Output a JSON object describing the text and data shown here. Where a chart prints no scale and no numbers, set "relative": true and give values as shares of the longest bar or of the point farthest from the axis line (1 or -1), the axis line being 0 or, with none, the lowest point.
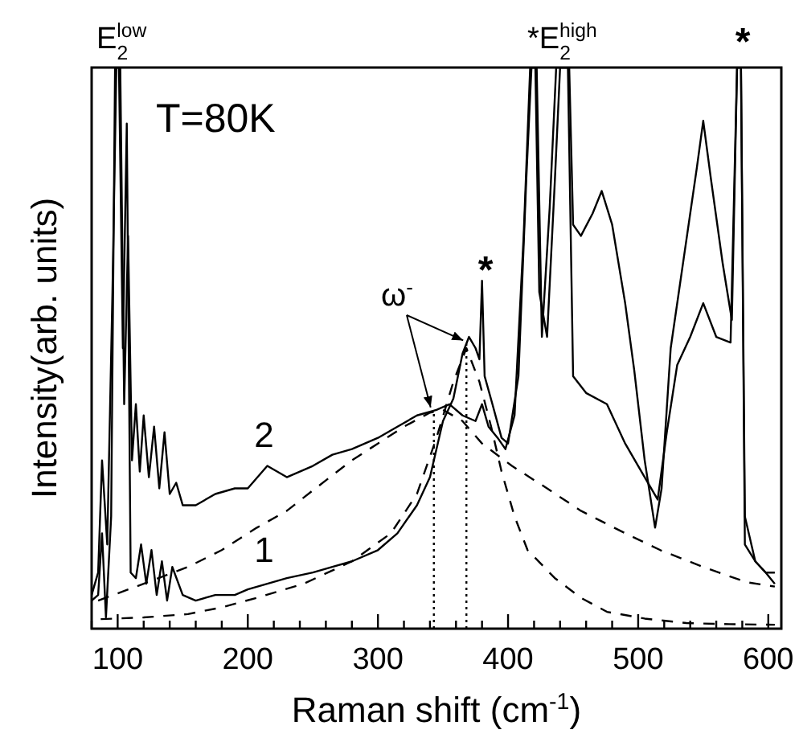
{
  "chart_data": {
    "type": "line",
    "relative": true,
    "xlabel": "Raman shift (cm$^{-1}$)",
    "ylabel": "Intensity(arb. units)",
    "xlim": [
      80,
      610
    ],
    "xticks": [
      {
        "value": 80,
        "label": null
      },
      100,
      {
        "value": 120,
        "label": null
      },
      {
        "value": 140,
        "label": null
      },
      {
        "value": 160,
        "label": null
      },
      {
        "value": 180,
        "label": null
      },
      200,
      {
        "value": 220,
        "label": null
      },
      {
        "value": 240,
        "label": null
      },
      {
        "value": 260,
        "label": null
      },
      {
        "value": 280,
        "label": null
      },
      300,
      {
        "value": 320,
        "label": null
      },
      {
        "value": 340,
        "label": null
      },
      {
        "value": 360,
        "label": null
      },
      {
        "value": 380,
        "label": null
      },
      400,
      {
        "value": 420,
        "label": null
      },
      {
        "value": 440,
        "label": null
      },
      {
        "value": 460,
        "label": null
      },
      {
        "value": 480,
        "label": null
      },
      500,
      {
        "value": 520,
        "label": null
      },
      {
        "value": 540,
        "label": null
      },
      {
        "value": 560,
        "label": null
      },
      {
        "value": 580,
        "label": null
      },
      600
    ],
    "tick_labels": "x",
    "grid": false,
    "series": [
      {
        "name": "1",
        "color": "#000000",
        "line_style": "solid",
        "x": [
          80,
          85,
          88,
          91,
          95,
          98,
          101,
          104,
          107,
          110,
          114,
          118,
          122,
          126,
          130,
          134,
          138,
          142,
          150,
          160,
          175,
          190,
          200,
          215,
          230,
          250,
          265,
          280,
          300,
          315,
          330,
          340,
          350,
          358,
          365,
          370,
          375,
          378,
          380,
          382,
          388,
          395,
          400,
          408,
          414,
          418,
          422,
          426,
          432,
          437,
          447,
          450,
          456,
          465,
          472,
          480,
          490,
          497,
          505,
          513,
          518,
          525,
          535,
          545,
          550,
          556,
          565,
          572,
          576,
          579,
          582,
          590,
          598,
          605
        ],
        "values": [
          0.05,
          0.06,
          0.17,
          0.02,
          0.2,
          1,
          1,
          0.5,
          0.9,
          0.1,
          0.09,
          0.15,
          0.08,
          0.14,
          0.06,
          0.12,
          0.05,
          0.11,
          0.06,
          0.05,
          0.06,
          0.06,
          0.07,
          0.08,
          0.09,
          0.1,
          0.11,
          0.12,
          0.14,
          0.17,
          0.22,
          0.27,
          0.37,
          0.41,
          0.49,
          0.52,
          0.5,
          0.48,
          0.62,
          0.45,
          0.4,
          0.34,
          0.33,
          0.45,
          0.8,
          1,
          1,
          0.52,
          0.75,
          1,
          1,
          0.72,
          0.7,
          0.74,
          0.78,
          0.72,
          0.58,
          0.46,
          0.3,
          0.18,
          0.25,
          0.5,
          0.66,
          0.82,
          0.905,
          0.8,
          0.65,
          0.55,
          1,
          1,
          0.2,
          0.12,
          0.1,
          0.08
        ]
      },
      {
        "name": "2",
        "color": "#000000",
        "line_style": "solid",
        "x": [
          80,
          85,
          88,
          92,
          96,
          99,
          102,
          105,
          108,
          111,
          114,
          117,
          120,
          124,
          128,
          132,
          136,
          140,
          145,
          150,
          160,
          175,
          190,
          200,
          215,
          230,
          250,
          265,
          280,
          300,
          315,
          330,
          345,
          355,
          365,
          375,
          380,
          385,
          392,
          398,
          405,
          412,
          417,
          421,
          424,
          430,
          436,
          440,
          446,
          450,
          460,
          476,
          490,
          505,
          515,
          522,
          530,
          540,
          550,
          560,
          571,
          576,
          579,
          582,
          590,
          598,
          605
        ],
        "values": [
          0.06,
          0.1,
          0.3,
          0.15,
          0.6,
          1,
          1,
          0.4,
          0.7,
          0.3,
          0.4,
          0.28,
          0.38,
          0.27,
          0.36,
          0.25,
          0.35,
          0.24,
          0.26,
          0.22,
          0.22,
          0.24,
          0.25,
          0.25,
          0.29,
          0.27,
          0.29,
          0.31,
          0.32,
          0.34,
          0.36,
          0.38,
          0.39,
          0.4,
          0.38,
          0.37,
          0.4,
          0.36,
          0.34,
          0.32,
          0.38,
          0.7,
          1,
          1,
          0.6,
          0.52,
          0.8,
          1,
          1,
          0.45,
          0.42,
          0.4,
          0.33,
          0.27,
          0.23,
          0.35,
          0.47,
          0.52,
          0.58,
          0.52,
          0.51,
          1,
          1,
          0.15,
          0.12,
          0.1,
          0.1
        ]
      },
      {
        "color": "#000000",
        "line_style": "dashed",
        "x": [
          85,
          120,
          154,
          180,
          207,
          230,
          252,
          280,
          300,
          320,
          340,
          350,
          365,
          380,
          403,
          430,
          456,
          490,
          517,
          550,
          583,
          605
        ],
        "values": [
          0.05,
          0.08,
          0.11,
          0.14,
          0.18,
          0.21,
          0.25,
          0.3,
          0.33,
          0.36,
          0.385,
          0.39,
          0.37,
          0.33,
          0.29,
          0.25,
          0.21,
          0.17,
          0.14,
          0.11,
          0.083,
          0.075
        ]
      },
      {
        "color": "#000000",
        "line_style": "dashed",
        "x": [
          87,
          120,
          154,
          180,
          207,
          243,
          280,
          310,
          330,
          345,
          358,
          368,
          378,
          387,
          395,
          405,
          415,
          436,
          456,
          476,
          505,
          537,
          570,
          605
        ],
        "values": [
          0.017,
          0.02,
          0.026,
          0.038,
          0.055,
          0.08,
          0.12,
          0.17,
          0.24,
          0.34,
          0.44,
          0.5,
          0.44,
          0.36,
          0.28,
          0.2,
          0.14,
          0.09,
          0.055,
          0.03,
          0.018,
          0.01,
          0.008,
          0.007
        ]
      }
    ],
    "ref_lines": [
      {
        "axis": "x",
        "value": 343,
        "line_style": "dotted",
        "color": "#000000"
      },
      {
        "axis": "x",
        "value": 368,
        "line_style": "dotted",
        "color": "#000000"
      }
    ],
    "annotations": [
      "T=80K",
      "E$_{2}$$^{low}$",
      "*E$_{2}$$^{high}$",
      "*",
      "*",
      "ω$^{-}$"
    ]
  }
}
